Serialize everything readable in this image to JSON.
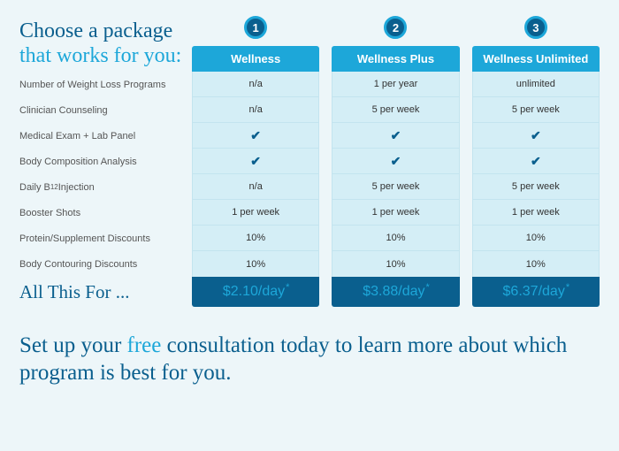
{
  "colors": {
    "page_bg": "#edf6f9",
    "primary_dark": "#0a5f8e",
    "primary_light": "#1da7d9",
    "cell_bg": "#d4eef6",
    "cell_border": "#c3e4ef"
  },
  "heading": {
    "line1": "Choose a package",
    "line2": "that works for you:"
  },
  "plans": [
    {
      "badge": "1",
      "name": "Wellness",
      "price": "$2.10/day"
    },
    {
      "badge": "2",
      "name": "Wellness Plus",
      "price": "$3.88/day"
    },
    {
      "badge": "3",
      "name": "Wellness Unlimited",
      "price": "$6.37/day"
    }
  ],
  "features": [
    {
      "label": "Number of Weight Loss Programs",
      "values": [
        "n/a",
        "1 per year",
        "unlimited"
      ]
    },
    {
      "label": "Clinician Counseling",
      "values": [
        "n/a",
        "5 per week",
        "5 per week"
      ]
    },
    {
      "label": "Medical Exam + Lab Panel",
      "values": [
        "check",
        "check",
        "check"
      ]
    },
    {
      "label": "Body Composition Analysis",
      "values": [
        "check",
        "check",
        "check"
      ]
    },
    {
      "label": "Daily B12 Injection",
      "sub": "12",
      "base": "Daily B",
      "suffix": " Injection",
      "values": [
        "n/a",
        "5 per week",
        "5 per week"
      ]
    },
    {
      "label": "Booster Shots",
      "values": [
        "1 per week",
        "1 per week",
        "1 per week"
      ]
    },
    {
      "label": "Protein/Supplement Discounts",
      "values": [
        "10%",
        "10%",
        "10%"
      ]
    },
    {
      "label": "Body Contouring Discounts",
      "values": [
        "10%",
        "10%",
        "10%"
      ]
    }
  ],
  "footer_label": "All This For ...",
  "cta": {
    "pre": "Set up your ",
    "free": "free",
    "post": " consultation today to learn more about which program is best for you."
  }
}
